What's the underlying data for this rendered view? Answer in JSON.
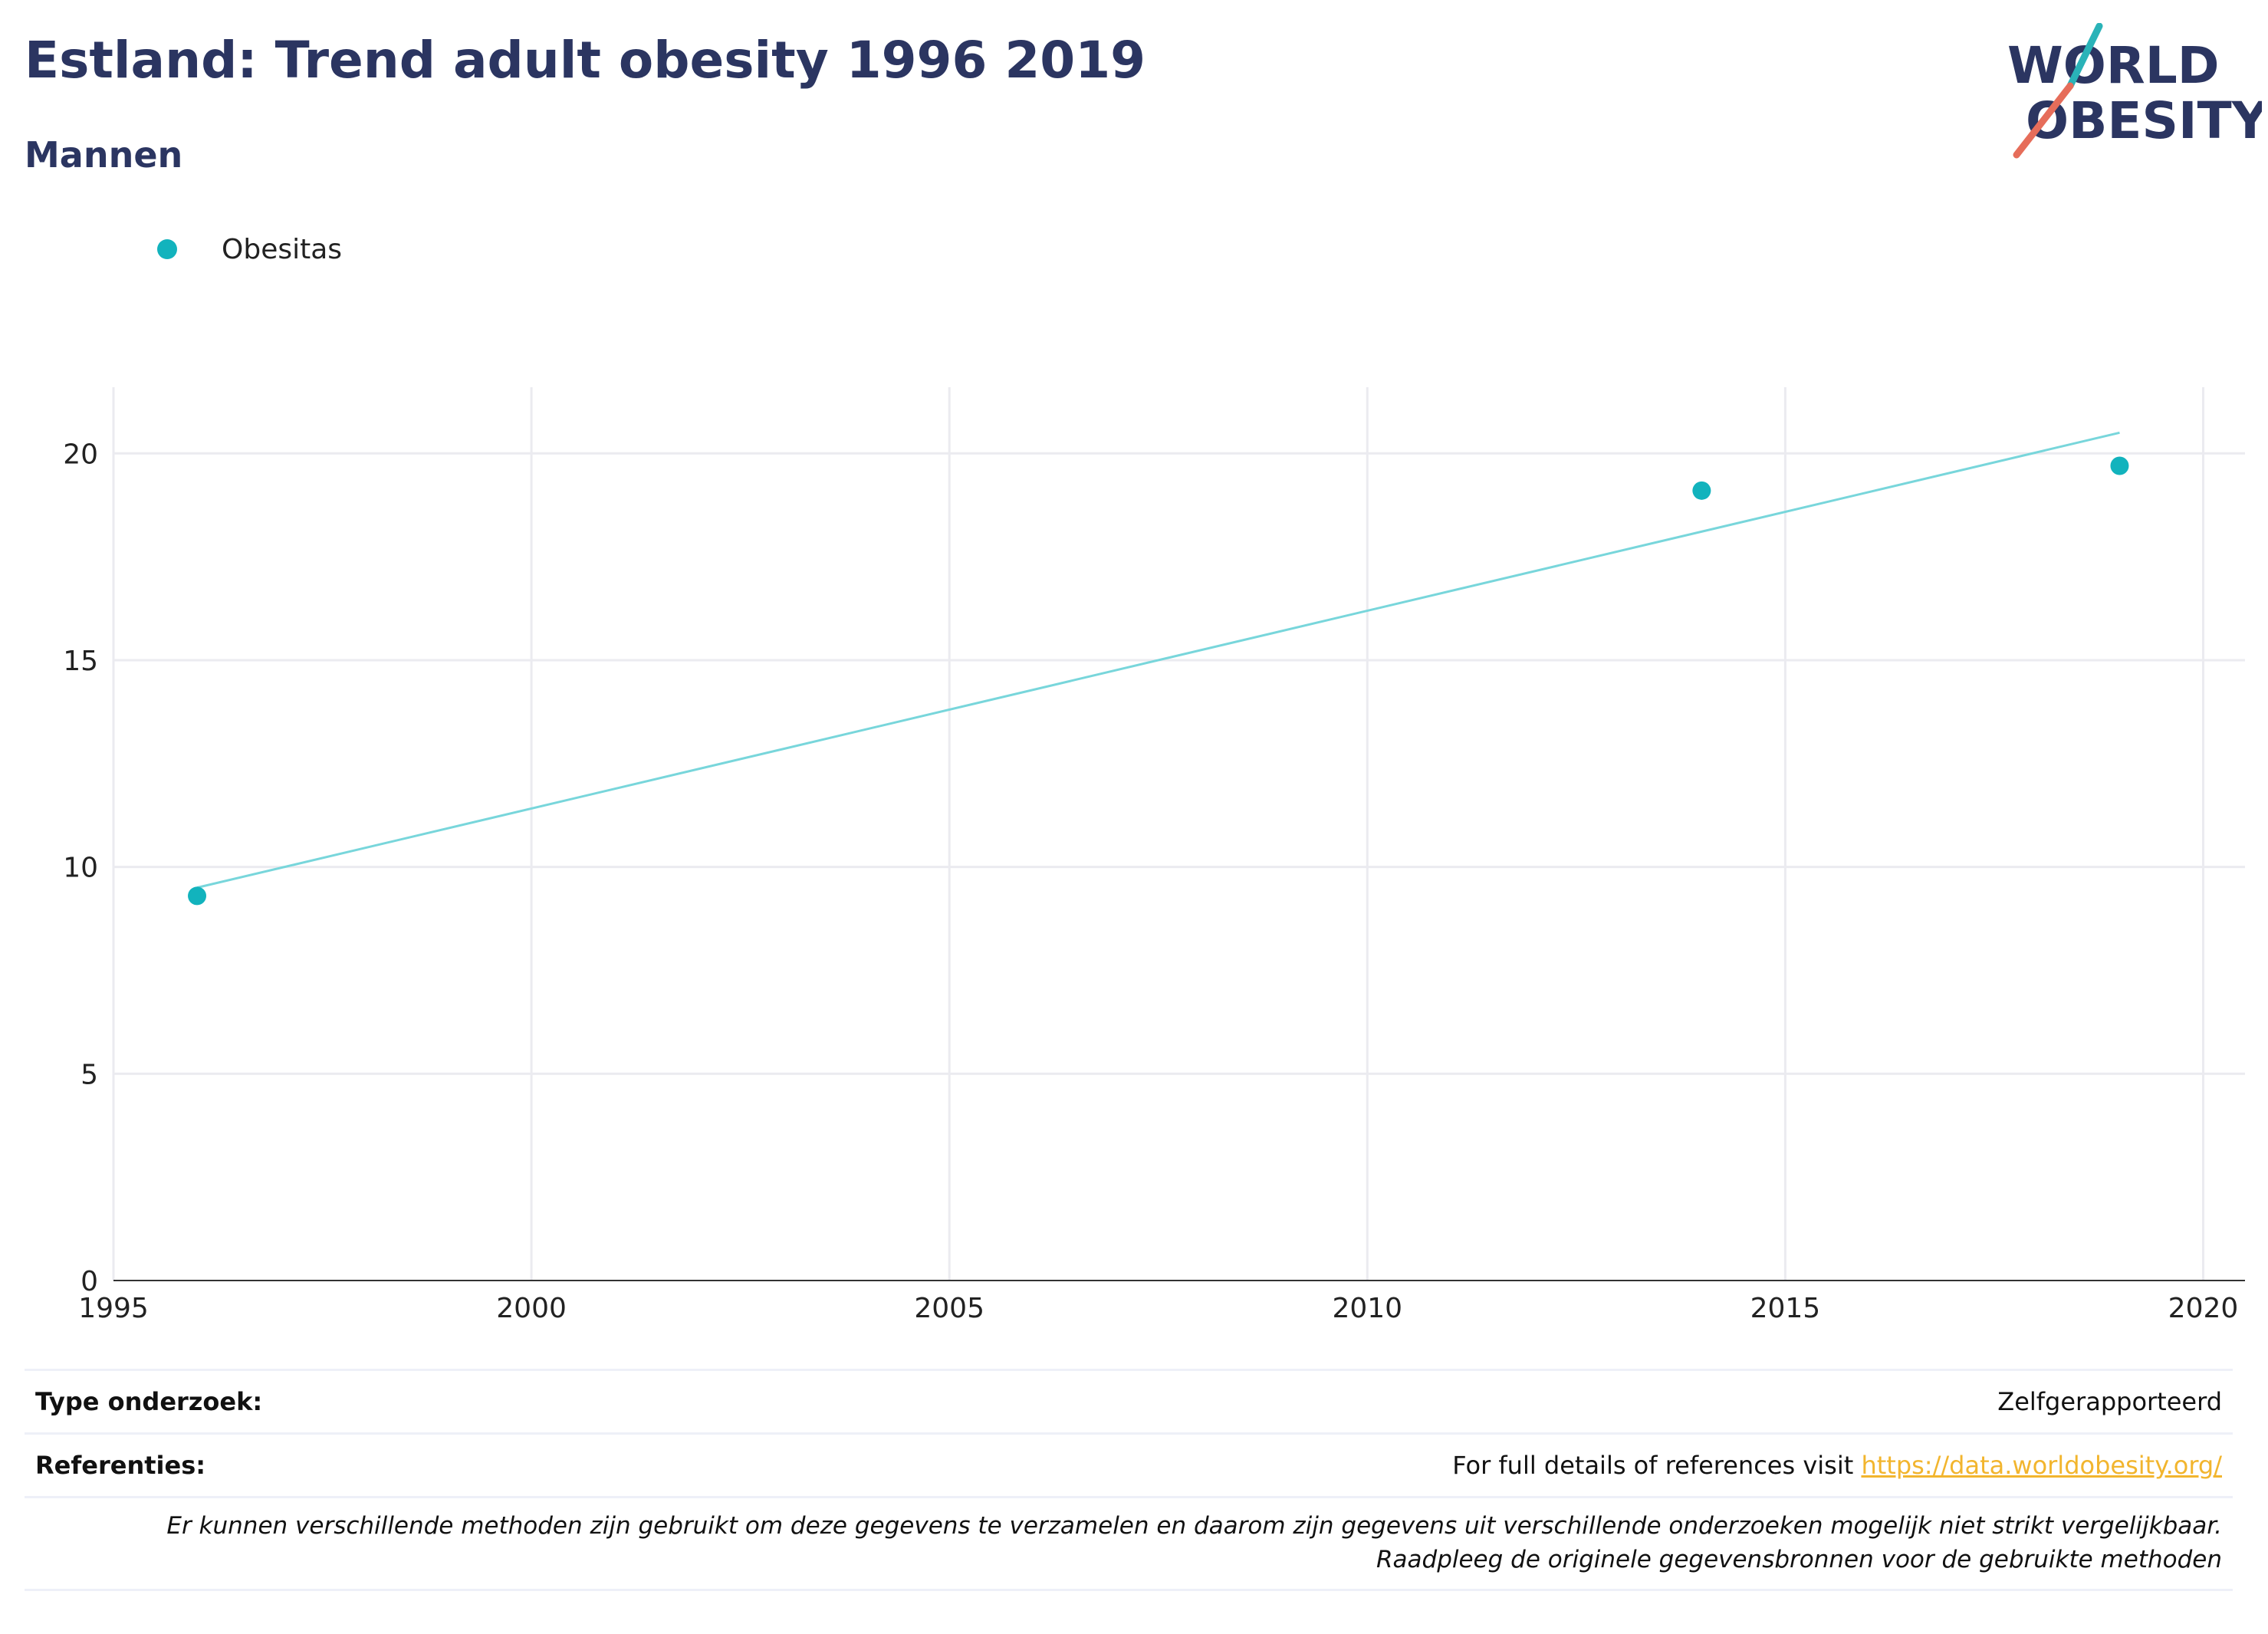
{
  "header": {
    "title": "Estland: Trend adult obesity 1996 2019",
    "subtitle": "Mannen"
  },
  "logo": {
    "line1": "WORLD",
    "line2": "OBESITY",
    "colors": {
      "text": "#2b3561",
      "teal": "#2ab3b8",
      "coral": "#e66d5a"
    }
  },
  "legend": {
    "label": "Obesitas",
    "color": "#12b3bd"
  },
  "chart_data": {
    "type": "scatter",
    "x": [
      1996,
      2014,
      2019
    ],
    "series": [
      {
        "name": "Obesitas",
        "values": [
          9.3,
          19.1,
          19.7
        ],
        "color": "#12b3bd"
      }
    ],
    "trendline": {
      "x": [
        1996,
        2019
      ],
      "y": [
        9.5,
        20.5
      ],
      "color": "#78d6db"
    },
    "xlim": [
      1995,
      2020.5
    ],
    "ylim": [
      0,
      21.6
    ],
    "xticks": [
      1995,
      2000,
      2005,
      2010,
      2015,
      2020
    ],
    "yticks": [
      0,
      5,
      10,
      15,
      20
    ],
    "grid": true,
    "xlabel": "",
    "ylabel": ""
  },
  "info": {
    "type_label": "Type onderzoek:",
    "type_value": "Zelfgerapporteerd",
    "ref_label": "Referenties:",
    "ref_text": "For full details of references visit",
    "ref_link": "https://data.worldobesity.org/",
    "note": "Er kunnen verschillende methoden zijn gebruikt om deze gegevens te verzamelen en daarom zijn gegevens uit verschillende onderzoeken mogelijk niet strikt vergelijkbaar. Raadpleeg de originele gegevensbronnen voor de gebruikte methoden"
  }
}
